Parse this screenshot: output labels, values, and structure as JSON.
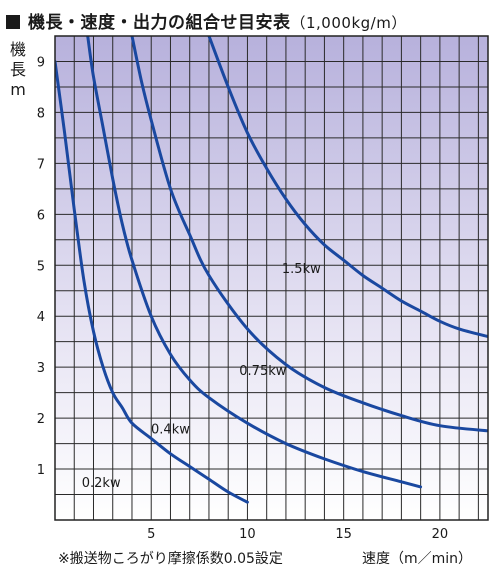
{
  "header": {
    "title": "機長・速度・出力の組合せ目安表",
    "unit": "（1,000kg/m）"
  },
  "footer": {
    "note": "※搬送物ころがり摩擦係数0.05設定"
  },
  "colors": {
    "curve": "#1a48a0",
    "grid": "#2a2a2a",
    "bg_top": "#b7b1dc",
    "bg_bottom": "#ffffff"
  },
  "chart_data": {
    "type": "line",
    "title": "機長・速度・出力の組合せ目安表（1,000kg/m）",
    "xlabel": "速度（m／min）",
    "ylabel": "機長 m",
    "xlim": [
      0,
      22.5
    ],
    "ylim": [
      0,
      9.5
    ],
    "x_ticks": [
      5,
      10,
      15,
      20
    ],
    "y_ticks": [
      1,
      2,
      3,
      4,
      5,
      6,
      7,
      8,
      9
    ],
    "grid": true,
    "series": [
      {
        "name": "0.2kw",
        "x": [
          0,
          0.5,
          1,
          1.5,
          2,
          2.5,
          3,
          3.5,
          4,
          5,
          6,
          7,
          8,
          9,
          10
        ],
        "y": [
          9.0,
          7.6,
          6.1,
          4.7,
          3.7,
          3.0,
          2.5,
          2.2,
          1.9,
          1.6,
          1.3,
          1.05,
          0.8,
          0.55,
          0.35
        ]
      },
      {
        "name": "0.4kw",
        "x": [
          1.7,
          2,
          2.5,
          3,
          3.5,
          4,
          5,
          6,
          7,
          8,
          10,
          12,
          14,
          16,
          18,
          19
        ],
        "y": [
          9.5,
          8.7,
          7.7,
          6.7,
          5.8,
          5.1,
          4.0,
          3.25,
          2.75,
          2.4,
          1.9,
          1.5,
          1.2,
          0.95,
          0.75,
          0.65
        ]
      },
      {
        "name": "0.75kw",
        "x": [
          4,
          4.5,
          5,
          6,
          7,
          8,
          10,
          12,
          14,
          16,
          18,
          20,
          22.5
        ],
        "y": [
          9.5,
          8.6,
          7.85,
          6.5,
          5.6,
          4.8,
          3.75,
          3.05,
          2.6,
          2.3,
          2.05,
          1.85,
          1.75
        ]
      },
      {
        "name": "1.5kw",
        "x": [
          8,
          9,
          10,
          11,
          12,
          13,
          14,
          15,
          16,
          17,
          18,
          19,
          20,
          21,
          22.5
        ],
        "y": [
          9.5,
          8.5,
          7.6,
          6.9,
          6.3,
          5.8,
          5.4,
          5.1,
          4.8,
          4.55,
          4.3,
          4.1,
          3.9,
          3.75,
          3.6
        ]
      }
    ],
    "annotations": [
      "0.2kw",
      "0.4kw",
      "0.75kw",
      "1.5kw"
    ]
  }
}
